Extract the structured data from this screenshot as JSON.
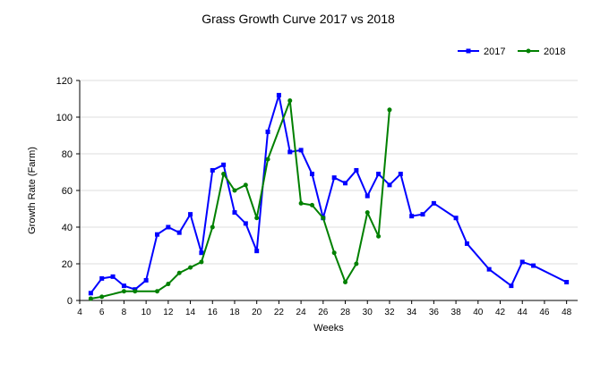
{
  "chart_data": {
    "type": "line",
    "title": "Grass Growth Curve 2017 vs 2018",
    "xlabel": "Weeks",
    "ylabel": "Growth Rate (Farm)",
    "xlim": [
      4,
      49
    ],
    "ylim": [
      0,
      120
    ],
    "xticks": [
      4,
      6,
      8,
      10,
      12,
      14,
      16,
      18,
      20,
      22,
      24,
      26,
      28,
      30,
      32,
      34,
      36,
      38,
      40,
      42,
      44,
      46,
      48
    ],
    "yticks": [
      0,
      20,
      40,
      60,
      80,
      100,
      120
    ],
    "grid": true,
    "legend_position": "top-right",
    "series": [
      {
        "name": "2017",
        "color": "#0000ff",
        "marker": "square",
        "points": [
          [
            5,
            4
          ],
          [
            6,
            12
          ],
          [
            7,
            13
          ],
          [
            8,
            8
          ],
          [
            9,
            6
          ],
          [
            10,
            11
          ],
          [
            11,
            36
          ],
          [
            12,
            40
          ],
          [
            13,
            37
          ],
          [
            14,
            47
          ],
          [
            15,
            26
          ],
          [
            16,
            71
          ],
          [
            17,
            74
          ],
          [
            18,
            48
          ],
          [
            19,
            42
          ],
          [
            20,
            27
          ],
          [
            21,
            92
          ],
          [
            22,
            112
          ],
          [
            23,
            81
          ],
          [
            24,
            82
          ],
          [
            25,
            69
          ],
          [
            26,
            45
          ],
          [
            27,
            67
          ],
          [
            28,
            64
          ],
          [
            29,
            71
          ],
          [
            30,
            57
          ],
          [
            31,
            69
          ],
          [
            32,
            63
          ],
          [
            33,
            69
          ],
          [
            34,
            46
          ],
          [
            35,
            47
          ],
          [
            36,
            53
          ],
          [
            38,
            45
          ],
          [
            39,
            31
          ],
          [
            41,
            17
          ],
          [
            43,
            8
          ],
          [
            44,
            21
          ],
          [
            45,
            19
          ],
          [
            48,
            10
          ]
        ]
      },
      {
        "name": "2018",
        "color": "#008000",
        "marker": "circle",
        "points": [
          [
            5,
            1
          ],
          [
            6,
            2
          ],
          [
            8,
            5
          ],
          [
            9,
            5
          ],
          [
            11,
            5
          ],
          [
            12,
            9
          ],
          [
            13,
            15
          ],
          [
            14,
            18
          ],
          [
            15,
            21
          ],
          [
            16,
            40
          ],
          [
            17,
            69
          ],
          [
            18,
            60
          ],
          [
            19,
            63
          ],
          [
            20,
            45
          ],
          [
            21,
            77
          ],
          [
            23,
            109
          ],
          [
            24,
            53
          ],
          [
            25,
            52
          ],
          [
            26,
            45
          ],
          [
            27,
            26
          ],
          [
            28,
            10
          ],
          [
            29,
            20
          ],
          [
            30,
            48
          ],
          [
            31,
            35
          ],
          [
            32,
            104
          ]
        ]
      }
    ]
  }
}
